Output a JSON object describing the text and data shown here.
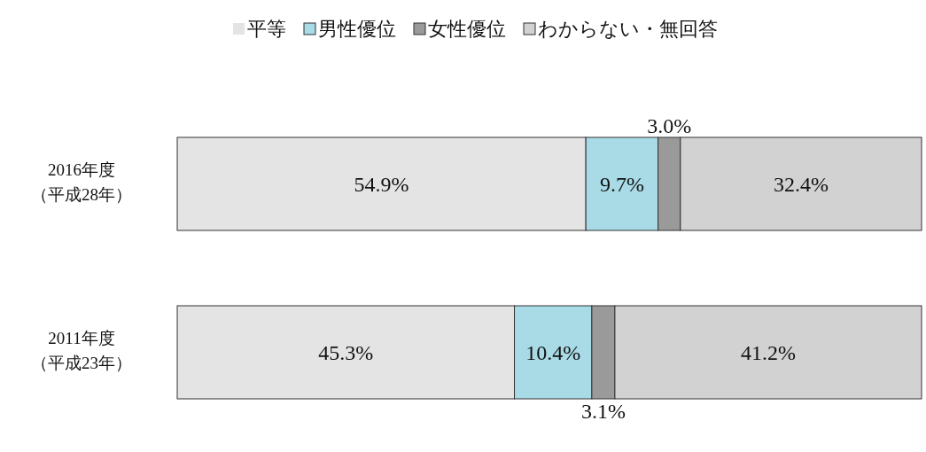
{
  "chart_data": {
    "type": "bar",
    "orientation": "horizontal",
    "stacked": true,
    "legend": "top",
    "categories": [
      "2016年度（平成28年）",
      "2011年度（平成23年）"
    ],
    "series": [
      {
        "name": "平等",
        "color": "#e4e4e4",
        "values": [
          54.9,
          45.3
        ],
        "value_labels": [
          "54.9%",
          "45.3%"
        ]
      },
      {
        "name": "男性優位",
        "color": "#a8dbe6",
        "values": [
          9.7,
          10.4
        ],
        "value_labels": [
          "9.7%",
          "10.4%"
        ]
      },
      {
        "name": "女性優位",
        "color": "#9a9a9a",
        "values": [
          3.0,
          3.1
        ],
        "value_labels": [
          "3.0%",
          "3.1%"
        ]
      },
      {
        "name": "わからない・無回答",
        "color": "#d2d2d2",
        "values": [
          32.4,
          41.2
        ],
        "value_labels": [
          "32.4%",
          "41.2%"
        ]
      }
    ]
  }
}
